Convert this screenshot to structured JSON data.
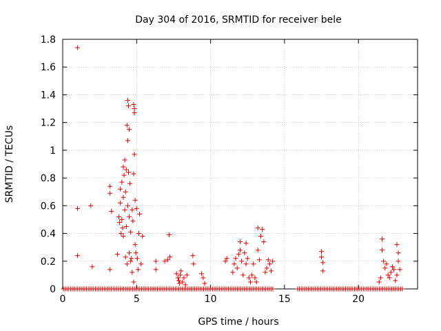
{
  "chart_data": {
    "type": "scatter",
    "title": "Day 304 of 2016, SRMTID for receiver bele",
    "xlabel": "GPS time / hours",
    "ylabel": "SRMTID / TECUs",
    "xlim": [
      0,
      24
    ],
    "ylim": [
      0,
      1.8
    ],
    "xticks": [
      0,
      5,
      10,
      15,
      20
    ],
    "yticks": [
      0,
      0.2,
      0.4,
      0.6,
      0.8,
      1,
      1.2,
      1.4,
      1.6,
      1.8
    ],
    "ytick_labels": [
      "0",
      "0.2",
      "0.4",
      "0.6",
      "0.8",
      "1",
      "1.2",
      "1.4",
      "1.6",
      "1.8"
    ],
    "grid": true,
    "marker": "+",
    "color": "#dd0000",
    "series": [
      {
        "name": "SRMTID",
        "points": [
          [
            1.0,
            1.74
          ],
          [
            1.0,
            0.58
          ],
          [
            1.0,
            0.24
          ],
          [
            1.9,
            0.6
          ],
          [
            2.0,
            0.16
          ],
          [
            3.2,
            0.74
          ],
          [
            3.2,
            0.69
          ],
          [
            3.3,
            0.56
          ],
          [
            3.2,
            0.14
          ],
          [
            3.7,
            0.25
          ],
          [
            3.8,
            0.52
          ],
          [
            3.85,
            0.48
          ],
          [
            3.9,
            0.72
          ],
          [
            3.9,
            0.62
          ],
          [
            3.95,
            0.4
          ],
          [
            4.0,
            0.77
          ],
          [
            4.0,
            0.5
          ],
          [
            4.05,
            0.44
          ],
          [
            4.1,
            0.88
          ],
          [
            4.1,
            0.66
          ],
          [
            4.1,
            0.38
          ],
          [
            4.15,
            0.82
          ],
          [
            4.2,
            0.93
          ],
          [
            4.2,
            0.57
          ],
          [
            4.25,
            0.7
          ],
          [
            4.25,
            0.23
          ],
          [
            4.3,
            0.86
          ],
          [
            4.3,
            0.45
          ],
          [
            4.35,
            1.18
          ],
          [
            4.35,
            0.18
          ],
          [
            4.4,
            1.36
          ],
          [
            4.4,
            1.07
          ],
          [
            4.4,
            0.6
          ],
          [
            4.45,
            1.32
          ],
          [
            4.45,
            0.84
          ],
          [
            4.5,
            1.15
          ],
          [
            4.5,
            0.52
          ],
          [
            4.5,
            0.26
          ],
          [
            4.55,
            0.76
          ],
          [
            4.6,
            0.41
          ],
          [
            4.6,
            0.2
          ],
          [
            4.65,
            0.22
          ],
          [
            4.7,
            0.57
          ],
          [
            4.7,
            0.12
          ],
          [
            4.75,
            0.49
          ],
          [
            4.8,
            0.83
          ],
          [
            4.8,
            0.05
          ],
          [
            4.8,
            1.33
          ],
          [
            4.85,
            1.3
          ],
          [
            4.85,
            1.27
          ],
          [
            4.85,
            0.97
          ],
          [
            4.9,
            0.64
          ],
          [
            4.9,
            0.32
          ],
          [
            4.95,
            0.26
          ],
          [
            5.0,
            0.58
          ],
          [
            5.05,
            0.22
          ],
          [
            5.1,
            0.14
          ],
          [
            5.15,
            0.4
          ],
          [
            5.2,
            0.54
          ],
          [
            5.3,
            0.18
          ],
          [
            5.4,
            0.38
          ],
          [
            6.3,
            0.2
          ],
          [
            6.3,
            0.14
          ],
          [
            6.9,
            0.2
          ],
          [
            7.1,
            0.21
          ],
          [
            7.2,
            0.39
          ],
          [
            7.25,
            0.23
          ],
          [
            7.7,
            0.11
          ],
          [
            7.8,
            0.08
          ],
          [
            7.85,
            0.06
          ],
          [
            7.9,
            0.04
          ],
          [
            7.95,
            0.1
          ],
          [
            8.0,
            0.13
          ],
          [
            8.1,
            0.05
          ],
          [
            8.2,
            0.08
          ],
          [
            8.3,
            0.03
          ],
          [
            8.4,
            0.1
          ],
          [
            8.8,
            0.24
          ],
          [
            8.85,
            0.18
          ],
          [
            9.4,
            0.11
          ],
          [
            9.5,
            0.08
          ],
          [
            9.6,
            0.04
          ],
          [
            11.0,
            0.2
          ],
          [
            11.1,
            0.22
          ],
          [
            11.5,
            0.12
          ],
          [
            11.6,
            0.18
          ],
          [
            11.7,
            0.22
          ],
          [
            11.8,
            0.15
          ],
          [
            11.9,
            0.25
          ],
          [
            12.0,
            0.34
          ],
          [
            12.0,
            0.28
          ],
          [
            12.1,
            0.2
          ],
          [
            12.2,
            0.1
          ],
          [
            12.3,
            0.26
          ],
          [
            12.4,
            0.33
          ],
          [
            12.4,
            0.18
          ],
          [
            12.5,
            0.22
          ],
          [
            12.6,
            0.08
          ],
          [
            12.7,
            0.05
          ],
          [
            12.8,
            0.1
          ],
          [
            12.9,
            0.18
          ],
          [
            13.0,
            0.08
          ],
          [
            13.1,
            0.05
          ],
          [
            13.2,
            0.44
          ],
          [
            13.2,
            0.28
          ],
          [
            13.3,
            0.21
          ],
          [
            13.4,
            0.38
          ],
          [
            13.5,
            0.43
          ],
          [
            13.6,
            0.34
          ],
          [
            13.7,
            0.12
          ],
          [
            13.8,
            0.15
          ],
          [
            13.9,
            0.21
          ],
          [
            14.0,
            0.18
          ],
          [
            14.1,
            0.13
          ],
          [
            14.2,
            0.2
          ],
          [
            17.5,
            0.27
          ],
          [
            17.5,
            0.23
          ],
          [
            17.6,
            0.19
          ],
          [
            17.6,
            0.13
          ],
          [
            21.4,
            0.05
          ],
          [
            21.5,
            0.08
          ],
          [
            21.6,
            0.36
          ],
          [
            21.6,
            0.28
          ],
          [
            21.7,
            0.2
          ],
          [
            21.8,
            0.15
          ],
          [
            21.9,
            0.18
          ],
          [
            22.0,
            0.1
          ],
          [
            22.1,
            0.08
          ],
          [
            22.2,
            0.12
          ],
          [
            22.3,
            0.16
          ],
          [
            22.4,
            0.14
          ],
          [
            22.5,
            0.06
          ],
          [
            22.6,
            0.1
          ],
          [
            22.6,
            0.32
          ],
          [
            22.7,
            0.26
          ],
          [
            22.7,
            0.2
          ],
          [
            22.8,
            0.14
          ]
        ]
      }
    ]
  }
}
